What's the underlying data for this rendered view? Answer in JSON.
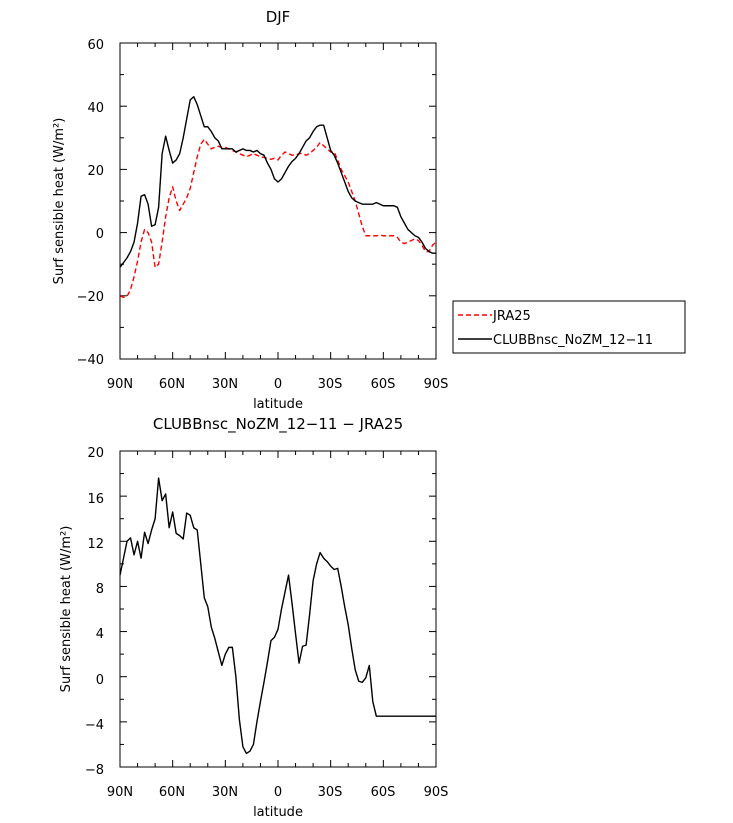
{
  "chart_data": [
    {
      "type": "line",
      "title": "DJF",
      "xlabel": "latitude",
      "ylabel": "Surf sensible heat (W/m²)",
      "xlim": [
        90,
        -90
      ],
      "ylim": [
        -40,
        60
      ],
      "xticks": [
        "90N",
        "60N",
        "30N",
        "0",
        "30S",
        "60S",
        "90S"
      ],
      "yticks": [
        "-40",
        "-20",
        "0",
        "20",
        "40",
        "60"
      ],
      "legend_position": "right",
      "series": [
        {
          "name": "JRA25",
          "color": "#ff0000",
          "dash": "dashed",
          "x": [
            90,
            88,
            86,
            84,
            82,
            80,
            78,
            76,
            74,
            72,
            70,
            68,
            66,
            64,
            62,
            60,
            58,
            56,
            54,
            52,
            50,
            48,
            46,
            44,
            42,
            40,
            38,
            36,
            34,
            32,
            30,
            28,
            26,
            24,
            22,
            20,
            18,
            16,
            14,
            12,
            10,
            8,
            6,
            4,
            2,
            0,
            -2,
            -4,
            -6,
            -8,
            -10,
            -12,
            -14,
            -16,
            -18,
            -20,
            -22,
            -24,
            -26,
            -28,
            -30,
            -32,
            -34,
            -36,
            -38,
            -40,
            -42,
            -44,
            -46,
            -48,
            -50,
            -52,
            -54,
            -56,
            -58,
            -60,
            -62,
            -64,
            -66,
            -68,
            -70,
            -72,
            -74,
            -76,
            -78,
            -80,
            -82,
            -84,
            -86,
            -88,
            -90
          ],
          "y": [
            -20,
            -20.5,
            -20.2,
            -18,
            -14,
            -9,
            -3,
            1,
            0,
            -3,
            -11,
            -10,
            -3,
            5,
            11,
            14.5,
            10,
            7,
            9,
            11,
            14,
            19,
            24,
            28,
            29.5,
            28,
            26.5,
            27,
            27.3,
            27,
            27,
            26.5,
            26,
            25.5,
            25,
            24.5,
            24,
            24.5,
            25,
            24.5,
            24,
            23.8,
            23.5,
            23.2,
            23.5,
            23,
            24.5,
            25.5,
            25,
            24.5,
            24.5,
            25,
            25,
            24.5,
            25,
            26,
            27,
            28.5,
            27.5,
            26.5,
            25.5,
            25.5,
            23,
            20,
            18,
            16,
            13,
            10,
            6,
            2,
            -1,
            -1,
            -1,
            -1,
            -0.8,
            -1,
            -1,
            -1,
            -1,
            -1.5,
            -3,
            -3.5,
            -3,
            -2.5,
            -2,
            -2.5,
            -4,
            -6,
            -6,
            -4,
            -3
          ]
        },
        {
          "name": "CLUBBnsc_NoZM_12-11",
          "color": "#000000",
          "dash": "solid",
          "x": [
            90,
            88,
            86,
            84,
            82,
            80,
            78,
            76,
            74,
            72,
            70,
            68,
            66,
            64,
            62,
            60,
            58,
            56,
            54,
            52,
            50,
            48,
            46,
            44,
            42,
            40,
            38,
            36,
            34,
            32,
            30,
            28,
            26,
            24,
            22,
            20,
            18,
            16,
            14,
            12,
            10,
            8,
            6,
            4,
            2,
            0,
            -2,
            -4,
            -6,
            -8,
            -10,
            -12,
            -14,
            -16,
            -18,
            -20,
            -22,
            -24,
            -26,
            -28,
            -30,
            -32,
            -34,
            -36,
            -38,
            -40,
            -42,
            -44,
            -46,
            -48,
            -50,
            -52,
            -54,
            -56,
            -58,
            -60,
            -62,
            -64,
            -66,
            -68,
            -70,
            -72,
            -74,
            -76,
            -78,
            -80,
            -82,
            -84,
            -86,
            -88,
            -90
          ],
          "y": [
            -11,
            -9.5,
            -8,
            -6,
            -3,
            3,
            11.5,
            12,
            9,
            2,
            2.5,
            8,
            25,
            30.5,
            26,
            22,
            23,
            25,
            30,
            36,
            42,
            43,
            40.5,
            37,
            33.5,
            33.5,
            32,
            30,
            29,
            26.5,
            26.5,
            26.5,
            26.5,
            25.5,
            26,
            26.5,
            26,
            26,
            25.5,
            26,
            25,
            24.5,
            22,
            20,
            17,
            16,
            17,
            19,
            21,
            22.5,
            23.5,
            25,
            27,
            29,
            30,
            32,
            33.5,
            34,
            34,
            30,
            26,
            24.5,
            22,
            19,
            16,
            13,
            11,
            10,
            9.5,
            9,
            9,
            9,
            9,
            9.5,
            9,
            8.5,
            8.5,
            8.5,
            8.5,
            8,
            5,
            3,
            1,
            0,
            -1,
            -1.5,
            -3,
            -5,
            -6,
            -6.5,
            -6.5
          ]
        }
      ]
    },
    {
      "type": "line",
      "title": "CLUBBnsc_NoZM_12-11 − JRA25",
      "xlabel": "latitude",
      "ylabel": "Surf sensible heat (W/m²)",
      "xlim": [
        90,
        -90
      ],
      "ylim": [
        -8,
        20
      ],
      "xticks": [
        "90N",
        "60N",
        "30N",
        "0",
        "30S",
        "60S",
        "90S"
      ],
      "yticks": [
        "-8",
        "-4",
        "0",
        "4",
        "8",
        "12",
        "16",
        "20"
      ],
      "series": [
        {
          "color": "#000000",
          "dash": "solid",
          "x": [
            90,
            88,
            86,
            84,
            82,
            80,
            78,
            76,
            74,
            72,
            70,
            68,
            66,
            64,
            62,
            60,
            58,
            56,
            54,
            52,
            50,
            48,
            46,
            44,
            42,
            40,
            38,
            36,
            34,
            32,
            30,
            28,
            26,
            24,
            22,
            20,
            18,
            16,
            14,
            12,
            10,
            8,
            6,
            4,
            2,
            0,
            -2,
            -4,
            -6,
            -8,
            -10,
            -12,
            -14,
            -16,
            -18,
            -20,
            -22,
            -24,
            -26,
            -28,
            -30,
            -32,
            -34,
            -36,
            -38,
            -40,
            -42,
            -44,
            -46,
            -48,
            -50,
            -52,
            -54,
            -56,
            -58,
            -60,
            -62,
            -64,
            -66,
            -68,
            -70,
            -72,
            -74,
            -76,
            -78,
            -80,
            -82,
            -84,
            -86,
            -88,
            -90
          ],
          "y": [
            9,
            10.5,
            12,
            12.3,
            10.8,
            12,
            10.5,
            12.8,
            11.8,
            13,
            14,
            17.6,
            15.6,
            16.2,
            13.2,
            14.6,
            12.7,
            12.5,
            12.2,
            14.5,
            14.3,
            13.2,
            13,
            10,
            7,
            6.2,
            4.4,
            3.4,
            2.2,
            1,
            2,
            2.6,
            2.6,
            0,
            -3.8,
            -6.2,
            -6.8,
            -6.6,
            -6,
            -4,
            -2.2,
            -0.5,
            1.3,
            3.2,
            3.5,
            4.2,
            6,
            7.5,
            9,
            6.5,
            3.8,
            1.2,
            2.7,
            2.8,
            5.5,
            8.5,
            10,
            11,
            10.5,
            10.2,
            9.8,
            9.5,
            9.6,
            8,
            6.2,
            4.6,
            2.5,
            0.6,
            -0.4,
            -0.5,
            -0.1,
            1,
            -2.2,
            -3.5,
            -3.5,
            -3.5,
            -3.5,
            -3.5,
            -3.5,
            -3.5,
            -3.5,
            -3.5,
            -3.5,
            -3.5,
            -3.5,
            -3.5,
            -3.5,
            -3.5,
            -3.5,
            -3.5,
            -3.5
          ]
        }
      ]
    }
  ],
  "x_axis_label": "latitude",
  "y_axis_label": "Surf sensible heat (W/m²)",
  "xtick_labels": [
    "90N",
    "60N",
    "30N",
    "0",
    "30S",
    "60S",
    "90S"
  ],
  "top_yticks": [
    "−40",
    "−20",
    "0",
    "20",
    "40",
    "60"
  ],
  "bottom_yticks": [
    "−8",
    "−4",
    "0",
    "4",
    "8",
    "12",
    "16",
    "20"
  ],
  "top_title": "DJF",
  "bottom_title": "CLUBBnsc_NoZM_12−11 − JRA25",
  "legend": {
    "jra": "JRA25",
    "clubb": "CLUBBnsc_NoZM_12−11"
  }
}
